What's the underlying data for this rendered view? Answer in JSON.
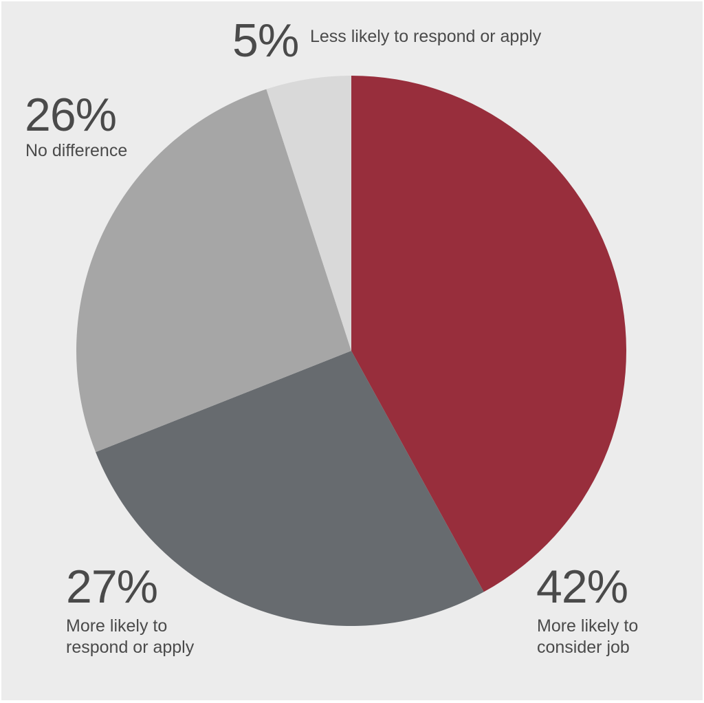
{
  "chart_data": {
    "type": "pie",
    "slices": [
      {
        "label": "More likely to\nconsider job",
        "value": 42,
        "value_label": "42%",
        "color": "#982e3c"
      },
      {
        "label": "More likely to\nrespond or apply",
        "value": 27,
        "value_label": "27%",
        "color": "#676b6f"
      },
      {
        "label": "No difference",
        "value": 26,
        "value_label": "26%",
        "color": "#a6a6a6"
      },
      {
        "label": "Less likely to respond or apply",
        "value": 5,
        "value_label": "5%",
        "color": "#d9d9d9"
      }
    ],
    "start": "12 o'clock",
    "direction": "clockwise"
  },
  "background_color": "#ececec",
  "text_color": "#4a4a4a"
}
